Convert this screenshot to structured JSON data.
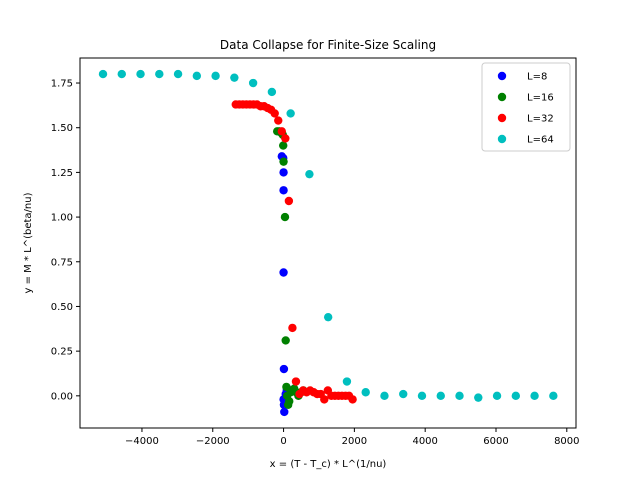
{
  "chart_data": {
    "type": "scatter",
    "title": "Data Collapse for Finite-Size Scaling",
    "xlabel": "x = (T - T_c) * L^(1/nu)",
    "ylabel": "y = M * L^(beta/nu)",
    "xlim": [
      -5750,
      8260
    ],
    "ylim": [
      -0.18,
      1.89
    ],
    "xticks": [
      -4000,
      -2000,
      0,
      2000,
      4000,
      6000,
      8000
    ],
    "xtick_labels": [
      "−4000",
      "−2000",
      "0",
      "2000",
      "4000",
      "6000",
      "8000"
    ],
    "yticks": [
      0.0,
      0.25,
      0.5,
      0.75,
      1.0,
      1.25,
      1.5,
      1.75
    ],
    "ytick_labels": [
      "0.00",
      "0.25",
      "0.50",
      "0.75",
      "1.00",
      "1.25",
      "1.50",
      "1.75"
    ],
    "grid": false,
    "legend_position": "top-right",
    "series": [
      {
        "name": "L=8",
        "color": "#0000ff",
        "points": [
          [
            -50,
            1.34
          ],
          [
            -10,
            1.33
          ],
          [
            0,
            1.25
          ],
          [
            0,
            1.15
          ],
          [
            0,
            0.69
          ],
          [
            10,
            0.15
          ],
          [
            0,
            -0.02
          ],
          [
            10,
            -0.05
          ],
          [
            20,
            -0.09
          ],
          [
            40,
            -0.03
          ],
          [
            60,
            0.01
          ],
          [
            90,
            0.03
          ],
          [
            110,
            0.04
          ],
          [
            150,
            0.02
          ]
        ]
      },
      {
        "name": "L=16",
        "color": "#008000",
        "points": [
          [
            -180,
            1.48
          ],
          [
            -120,
            1.48
          ],
          [
            -60,
            1.47
          ],
          [
            -20,
            1.46
          ],
          [
            -10,
            1.4
          ],
          [
            0,
            1.31
          ],
          [
            40,
            1.0
          ],
          [
            60,
            0.31
          ],
          [
            80,
            0.05
          ],
          [
            100,
            0.0
          ],
          [
            130,
            -0.05
          ],
          [
            160,
            -0.03
          ],
          [
            200,
            0.02
          ],
          [
            240,
            0.03
          ],
          [
            300,
            0.04
          ],
          [
            360,
            0.02
          ],
          [
            420,
            0.0
          ],
          [
            500,
            0.02
          ],
          [
            560,
            0.03
          ]
        ]
      },
      {
        "name": "L=32",
        "color": "#ff0000",
        "points": [
          [
            -1350,
            1.63
          ],
          [
            -1250,
            1.63
          ],
          [
            -1150,
            1.63
          ],
          [
            -1050,
            1.63
          ],
          [
            -950,
            1.63
          ],
          [
            -850,
            1.63
          ],
          [
            -750,
            1.63
          ],
          [
            -650,
            1.62
          ],
          [
            -550,
            1.62
          ],
          [
            -450,
            1.61
          ],
          [
            -350,
            1.6
          ],
          [
            -250,
            1.58
          ],
          [
            -150,
            1.54
          ],
          [
            -50,
            1.48
          ],
          [
            50,
            1.44
          ],
          [
            150,
            1.09
          ],
          [
            250,
            0.38
          ],
          [
            350,
            0.08
          ],
          [
            450,
            0.01
          ],
          [
            550,
            0.03
          ],
          [
            650,
            0.02
          ],
          [
            750,
            0.03
          ],
          [
            850,
            0.02
          ],
          [
            950,
            0.01
          ],
          [
            1050,
            0.01
          ],
          [
            1150,
            -0.02
          ],
          [
            1250,
            0.03
          ],
          [
            1350,
            0.0
          ],
          [
            1450,
            0.0
          ],
          [
            1550,
            0.0
          ],
          [
            1650,
            0.0
          ],
          [
            1750,
            0.0
          ],
          [
            1850,
            0.0
          ],
          [
            1950,
            -0.02
          ]
        ]
      },
      {
        "name": "L=64",
        "color": "#00bfbf",
        "points": [
          [
            -5100,
            1.8
          ],
          [
            -4570,
            1.8
          ],
          [
            -4040,
            1.8
          ],
          [
            -3510,
            1.8
          ],
          [
            -2980,
            1.8
          ],
          [
            -2450,
            1.79
          ],
          [
            -1920,
            1.79
          ],
          [
            -1390,
            1.78
          ],
          [
            -860,
            1.75
          ],
          [
            -330,
            1.7
          ],
          [
            200,
            1.58
          ],
          [
            730,
            1.24
          ],
          [
            1260,
            0.44
          ],
          [
            1790,
            0.08
          ],
          [
            2320,
            0.02
          ],
          [
            2850,
            0.0
          ],
          [
            3380,
            0.01
          ],
          [
            3910,
            0.0
          ],
          [
            4440,
            0.0
          ],
          [
            4970,
            0.0
          ],
          [
            5500,
            -0.01
          ],
          [
            6030,
            0.0
          ],
          [
            6560,
            0.0
          ],
          [
            7090,
            0.0
          ],
          [
            7620,
            0.0
          ]
        ]
      }
    ]
  }
}
